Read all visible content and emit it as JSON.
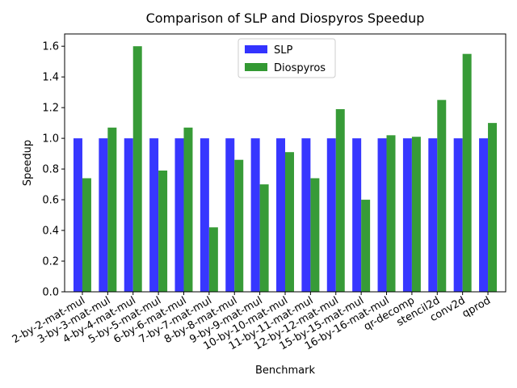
{
  "chart_data": {
    "type": "bar",
    "title": "Comparison of SLP and Diospyros Speedup",
    "xlabel": "Benchmark",
    "ylabel": "Speedup",
    "ylim": [
      0,
      1.68
    ],
    "yticks": [
      0.0,
      0.2,
      0.4,
      0.6,
      0.8,
      1.0,
      1.2,
      1.4,
      1.6
    ],
    "ytick_labels": [
      "0.0",
      "0.2",
      "0.4",
      "0.6",
      "0.8",
      "1.0",
      "1.2",
      "1.4",
      "1.6"
    ],
    "grid": false,
    "legend_position": "top-center",
    "categories": [
      "2-by-2-mat-mul",
      "3-by-3-mat-mul",
      "4-by-4-mat-mul",
      "5-by-5-mat-mul",
      "6-by-6-mat-mul",
      "7-by-7-mat-mul",
      "8-by-8-mat-mul",
      "9-by-9-mat-mul",
      "10-by-10-mat-mul",
      "11-by-11-mat-mul",
      "12-by-12-mat-mul",
      "15-by-15-mat-mul",
      "16-by-16-mat-mul",
      "qr-decomp",
      "stencil2d",
      "conv2d",
      "qprod"
    ],
    "series": [
      {
        "name": "SLP",
        "color": "#3333ff",
        "values": [
          1,
          1,
          1,
          1,
          1,
          1,
          1,
          1,
          1,
          1,
          1,
          1,
          1,
          1,
          1,
          1,
          1
        ]
      },
      {
        "name": "Diospyros",
        "color": "#339933",
        "values": [
          0.74,
          1.07,
          1.6,
          0.79,
          1.07,
          0.42,
          0.86,
          0.7,
          0.91,
          0.74,
          1.19,
          0.6,
          1.02,
          1.01,
          1.25,
          1.55,
          1.1
        ]
      }
    ]
  }
}
